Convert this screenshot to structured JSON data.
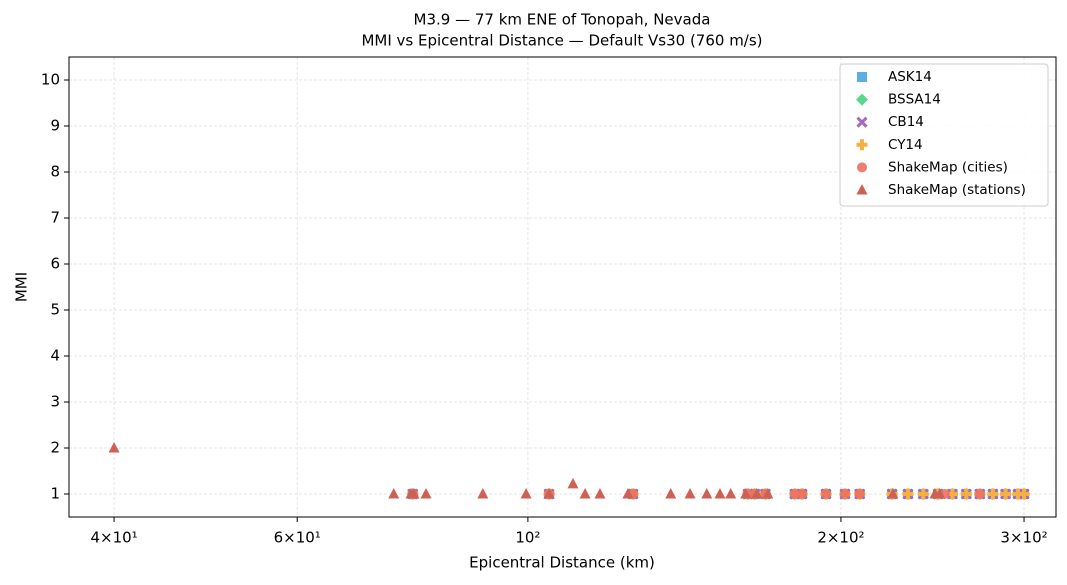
{
  "chart_data": {
    "type": "scatter",
    "title": "M3.9 — 77 km ENE of Tonopah, Nevada",
    "subtitle": "MMI vs Epicentral Distance — Default Vs30 (760 m/s)",
    "x_label": "Epicentral Distance (km)",
    "y_label": "MMI",
    "xscale": "log",
    "grid": true,
    "legend": "upper right",
    "xlim": [
      36.2,
      322
    ],
    "ylim": [
      0.5,
      10.5
    ],
    "xticks": [
      {
        "value": 40,
        "label": "4×10¹"
      },
      {
        "value": 60,
        "label": "6×10¹"
      },
      {
        "value": 100,
        "label": "10²"
      },
      {
        "value": 200,
        "label": "2×10²"
      },
      {
        "value": 300,
        "label": "3×10²"
      }
    ],
    "yticks": [
      1,
      2,
      3,
      4,
      5,
      6,
      7,
      8,
      9,
      10
    ],
    "series": [
      {
        "name": "ASK14",
        "color": "#5dade2",
        "marker": "square",
        "x": [
          77.5,
          104.8,
          126.2,
          162.8,
          165.3,
          169.2,
          180.6,
          183.5,
          193.5,
          201.8,
          208.5,
          224,
          232,
          240,
          248,
          256,
          264,
          272,
          280,
          288,
          296,
          300
        ],
        "values": [
          1,
          1,
          1,
          1,
          1,
          1,
          1,
          1,
          1,
          1,
          1,
          1,
          1,
          1,
          1,
          1,
          1,
          1,
          1,
          1,
          1,
          1
        ]
      },
      {
        "name": "BSSA14",
        "color": "#58d68d",
        "marker": "diamond",
        "x": [
          77.5,
          104.8,
          126.2,
          162.8,
          165.3,
          169.2,
          180.6,
          183.5,
          193.5,
          201.8,
          208.5,
          224,
          232,
          240,
          248,
          256,
          264,
          272,
          280,
          288,
          296,
          300
        ],
        "values": [
          1,
          1,
          1,
          1,
          1,
          1,
          1,
          1,
          1,
          1,
          1,
          1,
          1,
          1,
          1,
          1,
          1,
          1,
          1,
          1,
          1,
          1
        ]
      },
      {
        "name": "CB14",
        "color": "#a569bd",
        "marker": "x",
        "x": [
          77.5,
          104.8,
          126.2,
          162.8,
          165.3,
          169.2,
          180.6,
          183.5,
          193.5,
          201.8,
          208.5,
          224,
          232,
          240,
          248,
          256,
          264,
          272,
          280,
          288,
          296,
          300
        ],
        "values": [
          1,
          1,
          1,
          1,
          1,
          1,
          1,
          1,
          1,
          1,
          1,
          1,
          1,
          1,
          1,
          1,
          1,
          1,
          1,
          1,
          1,
          1
        ]
      },
      {
        "name": "CY14",
        "color": "#f5b041",
        "marker": "plus",
        "x": [
          77.5,
          104.8,
          126.2,
          162.8,
          165.3,
          169.2,
          180.6,
          183.5,
          193.5,
          201.8,
          208.5,
          224,
          232,
          240,
          248,
          256,
          264,
          272,
          280,
          288,
          296,
          300
        ],
        "values": [
          1,
          1,
          1,
          1,
          1,
          1,
          1,
          1,
          1,
          1,
          1,
          1,
          1,
          1,
          1,
          1,
          1,
          1,
          1,
          1,
          1,
          1
        ]
      },
      {
        "name": "ShakeMap (cities)",
        "color": "#ec7063",
        "marker": "circle",
        "x": [
          77.5,
          104.8,
          126.2,
          162.8,
          165.3,
          169.2,
          180.6,
          183.5,
          193.5,
          201.8,
          208.5,
          251.7,
          272.1
        ],
        "values": [
          1,
          1,
          1,
          1,
          1,
          1,
          1,
          1,
          1,
          1,
          1,
          1,
          1
        ]
      },
      {
        "name": "ShakeMap (stations)",
        "color": "#cd6155",
        "marker": "triangle",
        "x": [
          40,
          74.3,
          77.2,
          77.7,
          79.8,
          90.5,
          99.6,
          104.8,
          110.5,
          113.5,
          117.3,
          124.8,
          137.2,
          143.2,
          148.6,
          153,
          156.7,
          162,
          166,
          170.1,
          224.4,
          246.3,
          248.9
        ],
        "values": [
          2,
          1,
          1,
          1,
          1,
          1,
          1,
          1,
          1.22,
          1,
          1,
          1,
          1,
          1,
          1,
          1,
          1,
          1,
          1,
          1,
          1,
          1,
          1
        ]
      }
    ]
  }
}
